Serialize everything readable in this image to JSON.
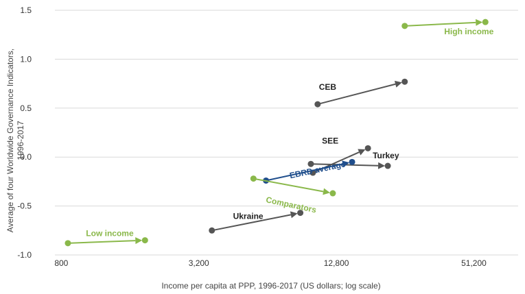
{
  "chart_data": {
    "type": "scatter",
    "xlabel": "Income per capita at PPP, 1996-2017 (US dollars; log scale)",
    "ylabel_line1": "Average of four Worldwide Governance Indicators,",
    "ylabel_line2": "1996-2017",
    "x_scale": "log",
    "xlim": [
      750,
      80000
    ],
    "ylim": [
      -1.0,
      1.5
    ],
    "x_ticks": [
      {
        "value": 800,
        "label": "800"
      },
      {
        "value": 3200,
        "label": "3,200"
      },
      {
        "value": 12800,
        "label": "12,800"
      },
      {
        "value": 51200,
        "label": "51,200"
      }
    ],
    "y_ticks": [
      {
        "value": 1.5,
        "label": "1.5"
      },
      {
        "value": 1.0,
        "label": "1.0"
      },
      {
        "value": 0.5,
        "label": "0.5"
      },
      {
        "value": 0.0,
        "label": "0.0"
      },
      {
        "value": -0.5,
        "label": "-0.5"
      },
      {
        "value": -1.0,
        "label": "-1.0"
      }
    ],
    "grid": "horizontal",
    "series": [
      {
        "name": "High income",
        "color": "#8ab84a",
        "x": [
          25500,
          57500
        ],
        "y": [
          1.34,
          1.38
        ]
      },
      {
        "name": "CEB",
        "color": "#555555",
        "x": [
          10600,
          25500
        ],
        "y": [
          0.54,
          0.77
        ]
      },
      {
        "name": "SEE",
        "color": "#555555",
        "x": [
          10100,
          17600
        ],
        "y": [
          -0.16,
          0.09
        ]
      },
      {
        "name": "Turkey",
        "color": "#555555",
        "x": [
          9900,
          21500
        ],
        "y": [
          -0.07,
          -0.09
        ]
      },
      {
        "name": "EBRD average",
        "color": "#1f4e8c",
        "x": [
          6300,
          15000
        ],
        "y": [
          -0.24,
          -0.05
        ]
      },
      {
        "name": "Comparators",
        "color": "#8ab84a",
        "x": [
          5550,
          12350
        ],
        "y": [
          -0.22,
          -0.37
        ]
      },
      {
        "name": "Ukraine",
        "color": "#555555",
        "x": [
          3650,
          8900
        ],
        "y": [
          -0.75,
          -0.57
        ]
      },
      {
        "name": "Low income",
        "color": "#8ab84a",
        "x": [
          855,
          1860
        ],
        "y": [
          -0.88,
          -0.85
        ]
      }
    ]
  }
}
